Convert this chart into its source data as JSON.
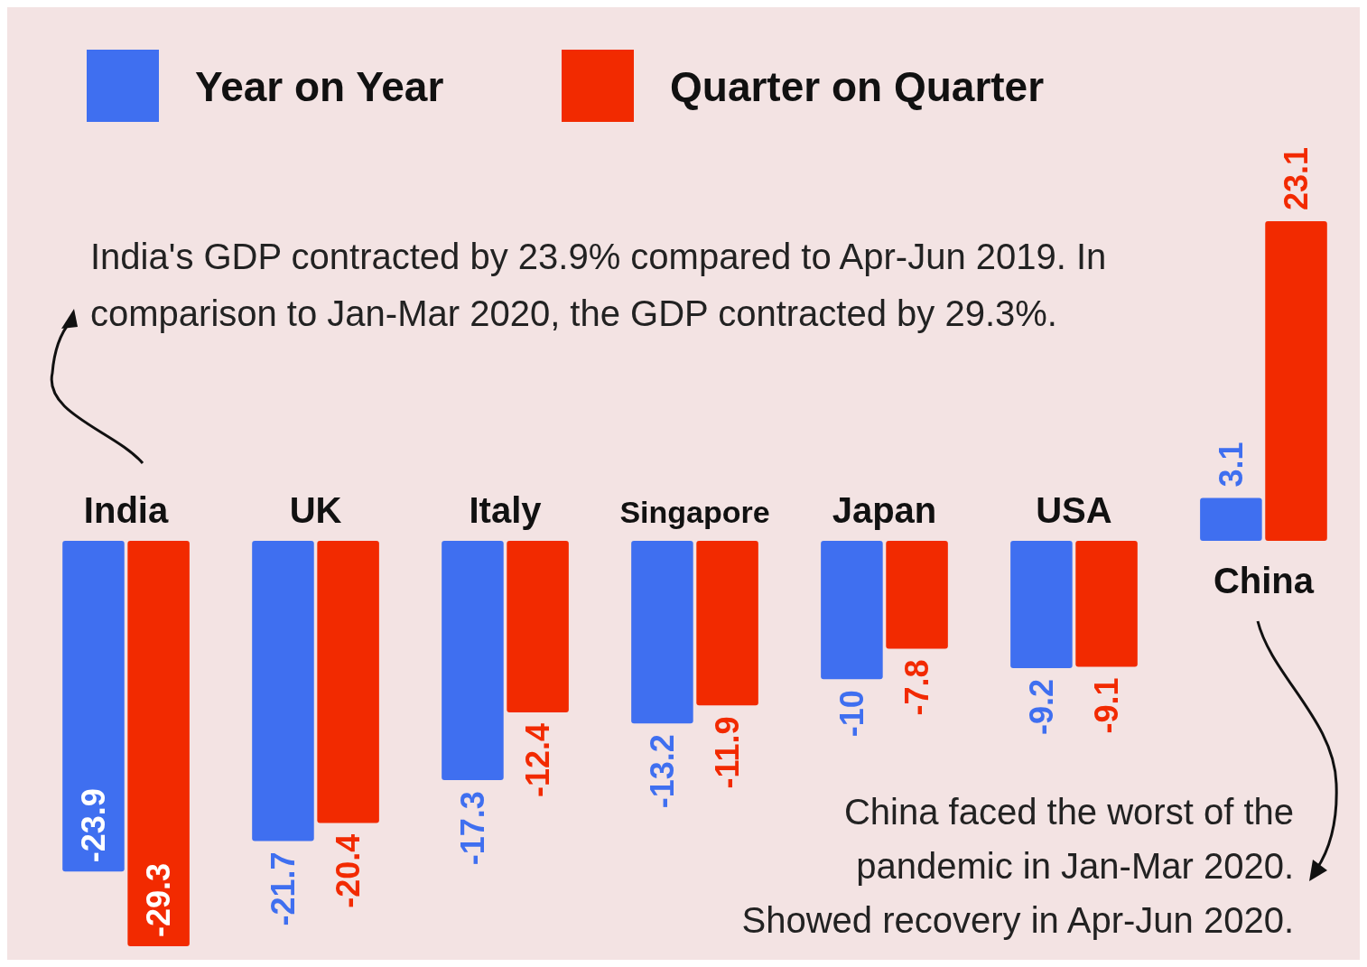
{
  "chart_data": {
    "type": "bar",
    "categories": [
      "India",
      "UK",
      "Italy",
      "Singapore",
      "Japan",
      "USA",
      "China"
    ],
    "series": [
      {
        "name": "Year on Year",
        "color": "#3f6ff0",
        "values": [
          -23.9,
          -21.7,
          -17.3,
          -13.2,
          -10,
          -9.2,
          3.1
        ]
      },
      {
        "name": "Quarter on Quarter",
        "color": "#f22a00",
        "values": [
          -29.3,
          -20.4,
          -12.4,
          -11.9,
          -7.8,
          -9.1,
          23.1
        ]
      }
    ],
    "data_labels": true,
    "legend": "top left",
    "annotations": [
      "India's GDP contracted by 23.9% compared to Apr-Jun 2019. In comparison to Jan-Mar 2020, the GDP contracted by 29.3%.",
      "China faced the worst of the pandemic in Jan-Mar 2020. Showed recovery in Apr-Jun 2020."
    ]
  }
}
